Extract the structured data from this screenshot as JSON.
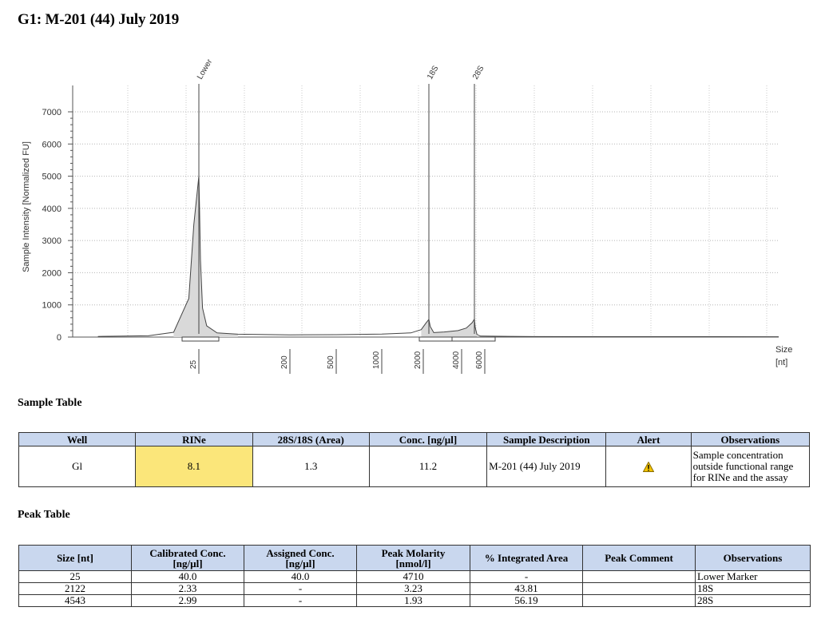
{
  "title": "G1: M-201 (44) July 2019",
  "chart_data": {
    "type": "line",
    "ylabel": "Sample Intensity [Normalized FU]",
    "xlabel": "Size\n[nt]",
    "ylim": [
      0,
      7000
    ],
    "yticks": [
      0,
      1000,
      2000,
      3000,
      4000,
      5000,
      6000,
      7000
    ],
    "grid": true,
    "ladder_ticks": [
      "25",
      "200",
      "500",
      "1000",
      "2000",
      "4000",
      "6000"
    ],
    "peak_labels": [
      {
        "label": "Lower",
        "size_nt": 25
      },
      {
        "label": "18S",
        "size_nt": 2122
      },
      {
        "label": "28S",
        "size_nt": 4543
      }
    ],
    "series": [
      {
        "name": "",
        "x_size_nt": [
          5,
          15,
          20,
          23,
          24,
          25,
          26,
          28,
          32,
          40,
          60,
          100,
          200,
          500,
          1000,
          1700,
          1950,
          2050,
          2122,
          2200,
          2400,
          3000,
          3800,
          4200,
          4450,
          4543,
          4650,
          4900,
          5400,
          6500,
          9000
        ],
        "y_fu": [
          20,
          40,
          150,
          1200,
          3500,
          5000,
          4200,
          2400,
          900,
          350,
          130,
          90,
          70,
          75,
          95,
          130,
          230,
          420,
          550,
          330,
          140,
          160,
          200,
          280,
          450,
          560,
          300,
          80,
          30,
          15,
          10
        ]
      }
    ]
  },
  "sample_table": {
    "heading": "Sample Table",
    "columns": [
      "Well",
      "RINe",
      "28S/18S (Area)",
      "Conc. [ng/µl]",
      "Sample Description",
      "Alert",
      "Observations"
    ],
    "row": {
      "well": "Gl",
      "rine": "8.1",
      "ratio": "1.3",
      "conc": "11.2",
      "description": "M-201 (44) July 2019",
      "alert_icon": "warning-icon",
      "observations": "Sample concentration outside functional range for RINe and the assay"
    },
    "rine_highlight_color": "#fbe67a"
  },
  "peak_table": {
    "heading": "Peak Table",
    "columns": [
      "Size [nt]",
      "Calibrated Conc. [ng/µl]",
      "Assigned Conc. [ng/µl]",
      "Peak Molarity [nmol/l]",
      "% Integrated Area",
      "Peak Comment",
      "Observations"
    ],
    "rows": [
      {
        "size": "25",
        "cal_conc": "40.0",
        "assigned_conc": "40.0",
        "molarity": "4710",
        "area": "-",
        "comment": "",
        "observations": "Lower Marker"
      },
      {
        "size": "2122",
        "cal_conc": "2.33",
        "assigned_conc": "-",
        "molarity": "3.23",
        "area": "43.81",
        "comment": "",
        "observations": "18S"
      },
      {
        "size": "4543",
        "cal_conc": "2.99",
        "assigned_conc": "-",
        "molarity": "1.93",
        "area": "56.19",
        "comment": "",
        "observations": "28S"
      }
    ]
  },
  "colors": {
    "header_bg": "#c9d7ee",
    "trace_fill": "#d9d9d9"
  }
}
